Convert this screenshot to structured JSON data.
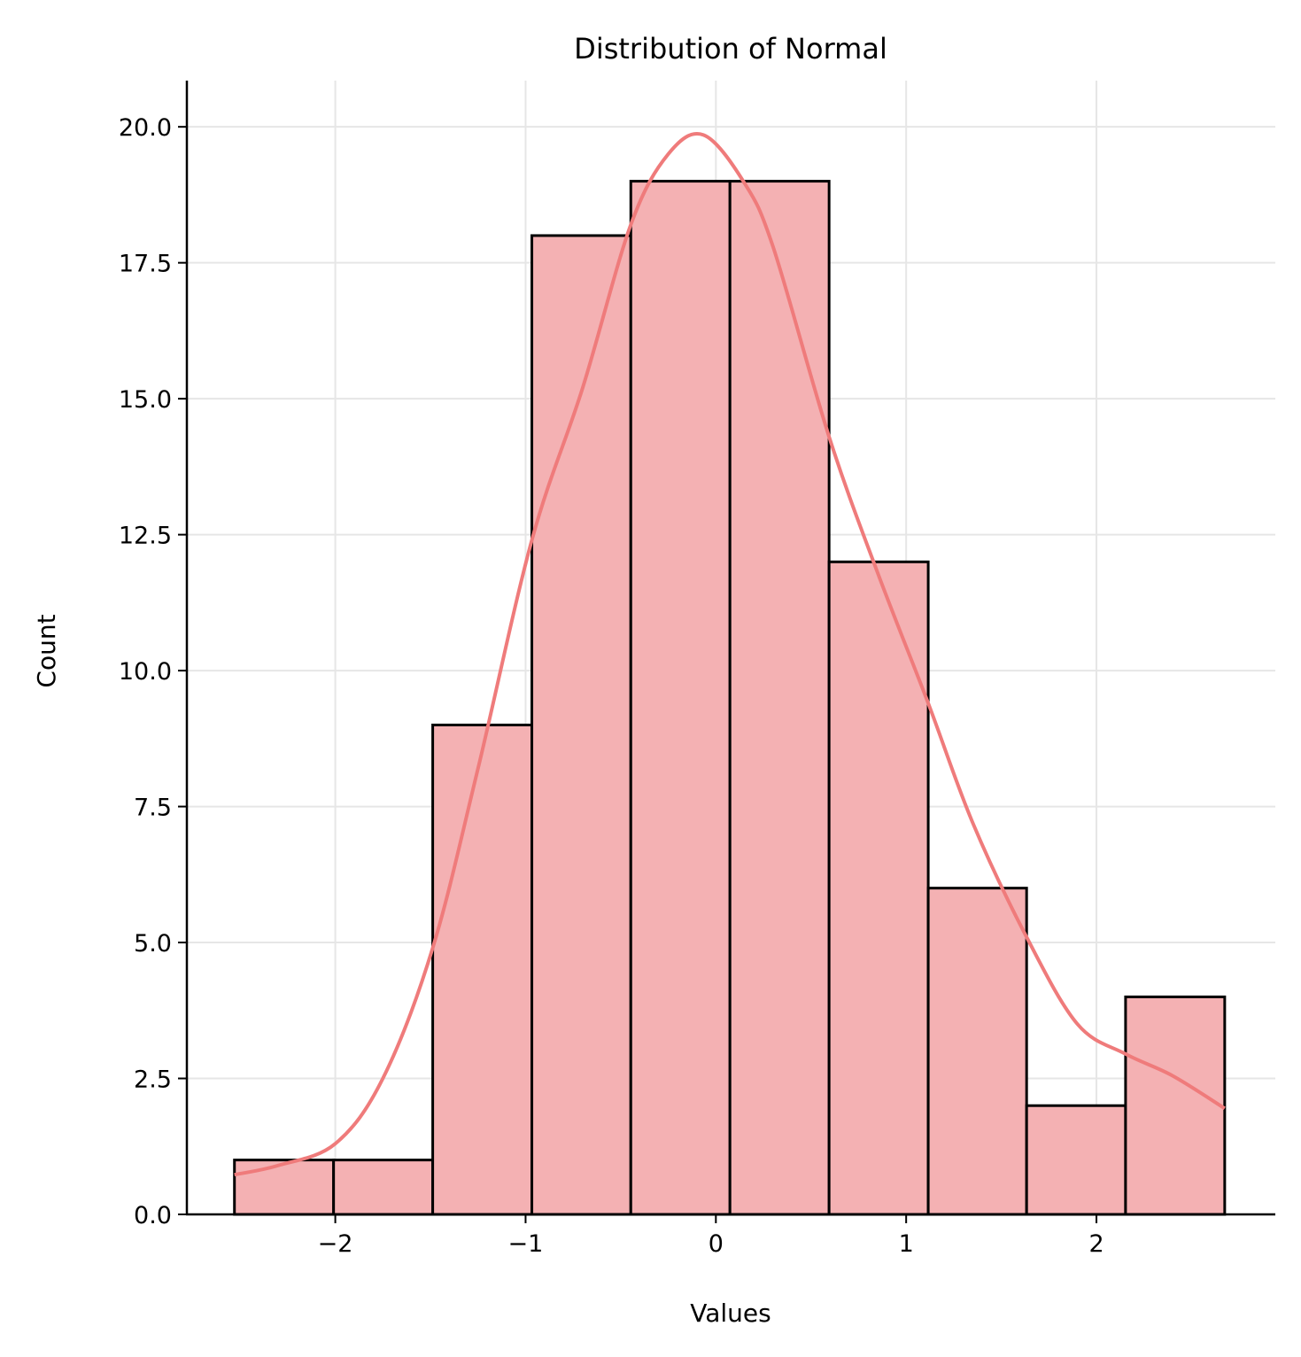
{
  "chart_data": {
    "type": "bar",
    "subtype": "histogram-with-kde",
    "title": "Distribution of Normal",
    "xlabel": "Values",
    "ylabel": "Count",
    "xlim": [
      -2.78,
      2.94
    ],
    "ylim": [
      0,
      20.85
    ],
    "grid": true,
    "x_ticks": [
      -2,
      -1,
      0,
      1,
      2
    ],
    "x_tick_labels": [
      "−2",
      "−1",
      "0",
      "1",
      "2"
    ],
    "y_ticks": [
      0,
      2.5,
      5,
      7.5,
      10,
      12.5,
      15,
      17.5,
      20
    ],
    "y_tick_labels": [
      "0.0",
      "2.5",
      "5.0",
      "7.5",
      "10.0",
      "12.5",
      "15.0",
      "17.5",
      "20.0"
    ],
    "bin_edges": [
      -2.53,
      -2.009,
      -1.488,
      -0.967,
      -0.447,
      0.074,
      0.595,
      1.116,
      1.633,
      2.153,
      2.674
    ],
    "values": [
      1,
      1,
      9,
      18,
      19,
      19,
      12,
      6,
      2,
      4
    ],
    "kde": {
      "x": [
        -2.53,
        -2.3,
        -2.0,
        -1.75,
        -1.488,
        -1.25,
        -0.967,
        -0.7,
        -0.447,
        -0.25,
        -0.065,
        0.144,
        0.3,
        0.595,
        0.85,
        1.116,
        1.35,
        1.633,
        1.9,
        2.153,
        2.4,
        2.674
      ],
      "y": [
        0.73,
        0.9,
        1.3,
        2.5,
        4.9,
        8.2,
        12.4,
        15.2,
        18.2,
        19.5,
        19.85,
        19.0,
        17.8,
        14.3,
        11.8,
        9.4,
        7.2,
        5.1,
        3.5,
        2.95,
        2.55,
        1.95
      ]
    },
    "colors": {
      "bar": "#f4b1b3",
      "edge": "#000000",
      "kde": "#ef7b7b",
      "grid": "#e6e6e6"
    }
  }
}
